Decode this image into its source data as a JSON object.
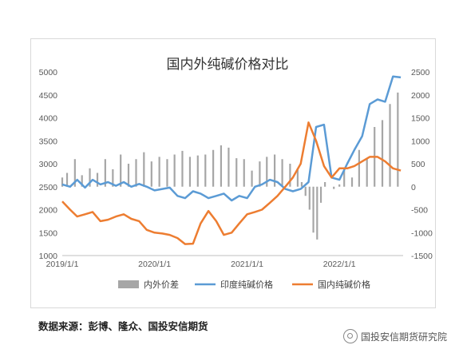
{
  "chart_data": {
    "type": "area+line",
    "title": "国内外纯碱价格对比",
    "x_ticks": [
      "2019/1/1",
      "2020/1/1",
      "2021/1/1",
      "2022/1/1"
    ],
    "y_left": {
      "min": 1000,
      "max": 5000,
      "ticks": [
        1000,
        1500,
        2000,
        2500,
        3000,
        3500,
        4000,
        4500,
        5000
      ]
    },
    "y_right": {
      "min": -1500,
      "max": 2500,
      "ticks": [
        -1500,
        -1000,
        -500,
        0,
        500,
        1000,
        1500,
        2000,
        2500
      ]
    },
    "series": [
      {
        "name": "内外价差",
        "type": "area",
        "axis": "right",
        "color": "#a6a6a6",
        "x": [
          "2019-01-01",
          "2019-01-20",
          "2019-02-20",
          "2019-03-20",
          "2019-04-20",
          "2019-05-20",
          "2019-06-20",
          "2019-07-20",
          "2019-08-20",
          "2019-09-20",
          "2019-10-20",
          "2019-11-20",
          "2019-12-20",
          "2020-01-20",
          "2020-02-20",
          "2020-03-20",
          "2020-04-20",
          "2020-05-20",
          "2020-06-20",
          "2020-07-20",
          "2020-08-20",
          "2020-09-20",
          "2020-10-20",
          "2020-11-20",
          "2020-12-20",
          "2021-01-20",
          "2021-02-20",
          "2021-03-20",
          "2021-04-20",
          "2021-05-20",
          "2021-06-20",
          "2021-07-20",
          "2021-08-05",
          "2021-08-20",
          "2021-09-05",
          "2021-09-20",
          "2021-10-05",
          "2021-10-20",
          "2021-11-05",
          "2021-11-20",
          "2021-12-10",
          "2022-01-01",
          "2022-01-20",
          "2022-02-20",
          "2022-03-20",
          "2022-04-20",
          "2022-05-20",
          "2022-06-20",
          "2022-07-20",
          "2022-08-20"
        ],
        "values": [
          200,
          300,
          600,
          250,
          400,
          300,
          600,
          380,
          700,
          500,
          600,
          750,
          550,
          650,
          600,
          700,
          780,
          650,
          680,
          700,
          800,
          900,
          850,
          620,
          600,
          350,
          550,
          650,
          700,
          600,
          500,
          400,
          100,
          -200,
          -500,
          -1000,
          -1150,
          -350,
          100,
          0,
          -50,
          50,
          350,
          200,
          800,
          600,
          1300,
          1450,
          1800,
          2050
        ]
      },
      {
        "name": "印度纯碱价格",
        "type": "line",
        "axis": "left",
        "color": "#5b9bd5",
        "x": [
          "2019-01-01",
          "2019-02-01",
          "2019-03-01",
          "2019-04-01",
          "2019-05-01",
          "2019-06-01",
          "2019-07-01",
          "2019-08-01",
          "2019-09-01",
          "2019-10-01",
          "2019-11-01",
          "2019-12-01",
          "2020-01-01",
          "2020-02-01",
          "2020-03-01",
          "2020-04-01",
          "2020-05-01",
          "2020-06-01",
          "2020-07-01",
          "2020-08-01",
          "2020-09-01",
          "2020-10-01",
          "2020-11-01",
          "2020-12-01",
          "2021-01-01",
          "2021-02-01",
          "2021-03-01",
          "2021-04-01",
          "2021-05-01",
          "2021-06-01",
          "2021-07-01",
          "2021-08-01",
          "2021-09-01",
          "2021-10-01",
          "2021-11-01",
          "2021-12-01",
          "2022-01-01",
          "2022-02-01",
          "2022-03-01",
          "2022-04-01",
          "2022-05-01",
          "2022-06-01",
          "2022-07-01",
          "2022-08-01",
          "2022-09-01"
        ],
        "values": [
          2550,
          2500,
          2650,
          2480,
          2650,
          2550,
          2600,
          2520,
          2600,
          2500,
          2560,
          2500,
          2420,
          2450,
          2480,
          2300,
          2250,
          2400,
          2350,
          2250,
          2300,
          2350,
          2200,
          2300,
          2250,
          2500,
          2550,
          2650,
          2600,
          2450,
          2400,
          2450,
          2600,
          3800,
          3850,
          2700,
          2650,
          3000,
          3300,
          3600,
          4300,
          4400,
          4350,
          4900,
          4880
        ]
      },
      {
        "name": "国内纯碱价格",
        "type": "line",
        "axis": "left",
        "color": "#ed7d31",
        "x": [
          "2019-01-01",
          "2019-02-01",
          "2019-03-01",
          "2019-04-01",
          "2019-05-01",
          "2019-06-01",
          "2019-07-01",
          "2019-08-01",
          "2019-09-01",
          "2019-10-01",
          "2019-11-01",
          "2019-12-01",
          "2020-01-01",
          "2020-02-01",
          "2020-03-01",
          "2020-04-01",
          "2020-05-01",
          "2020-06-01",
          "2020-07-01",
          "2020-08-01",
          "2020-09-01",
          "2020-10-01",
          "2020-11-01",
          "2020-12-01",
          "2021-01-01",
          "2021-02-01",
          "2021-03-01",
          "2021-04-01",
          "2021-05-01",
          "2021-06-01",
          "2021-07-01",
          "2021-08-01",
          "2021-09-01",
          "2021-10-01",
          "2021-11-01",
          "2021-12-01",
          "2022-01-01",
          "2022-02-01",
          "2022-03-01",
          "2022-04-01",
          "2022-05-01",
          "2022-06-01",
          "2022-07-01",
          "2022-08-01",
          "2022-09-01"
        ],
        "values": [
          2180,
          2000,
          1850,
          1900,
          1950,
          1750,
          1780,
          1850,
          1900,
          1800,
          1750,
          1560,
          1500,
          1480,
          1450,
          1380,
          1250,
          1260,
          1700,
          1970,
          1750,
          1450,
          1500,
          1700,
          1900,
          1950,
          2000,
          2150,
          2300,
          2500,
          2700,
          3000,
          3900,
          3500,
          2950,
          2700,
          2900,
          2900,
          2950,
          3050,
          3150,
          3150,
          3050,
          2900,
          2850
        ]
      }
    ]
  },
  "source": "数据来源：彭博、隆众、国投安信期货",
  "watermark": "国投安信期货研究院"
}
